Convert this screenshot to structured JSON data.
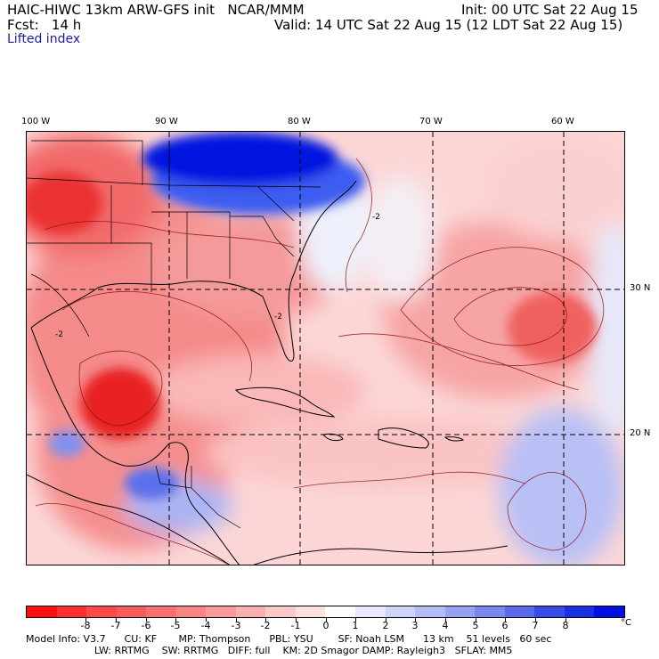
{
  "header": {
    "model_line": "HAIC-HIWC 13km ARW-GFS init   NCAR/MMM",
    "init": "Init: 00 UTC Sat 22 Aug 15",
    "fcst_line": "Fcst:   14 h",
    "valid": "Valid: 14 UTC Sat 22 Aug 15 (12 LDT Sat 22 Aug 15)",
    "field": "Lifted index"
  },
  "map": {
    "longitude_labels": [
      "100 W",
      "90 W",
      "80 W",
      "70 W",
      "60 W"
    ],
    "latitude_labels": [
      "30 N",
      "20 N"
    ],
    "contour_labels": [
      "-2",
      "-2",
      "-2"
    ],
    "colors": {
      "deep_blue": "#0018e0",
      "blue": "#3c5cf0",
      "light_blue": "#aab4f4",
      "pale": "#e6e8fa",
      "light_red": "#f8b8b8",
      "red": "#f06060",
      "deep_red": "#e82020"
    }
  },
  "colorbar": {
    "labels": [
      "-8",
      "-7",
      "-6",
      "-5",
      "-4",
      "-3",
      "-2",
      "-1",
      "0",
      "1",
      "2",
      "3",
      "4",
      "5",
      "6",
      "7",
      "8"
    ],
    "unit": "°C",
    "colors": [
      "#ff1010",
      "#ff2e2e",
      "#ff4848",
      "#f85c5c",
      "#f87070",
      "#f88484",
      "#f89a9a",
      "#fab0b0",
      "#fcc8c8",
      "#fde0e0",
      "#ffffff",
      "#e8e8ff",
      "#d0d4fa",
      "#b4bcf6",
      "#98a2f2",
      "#7a88ee",
      "#5a6aea",
      "#3a4ce6",
      "#1a30e4",
      "#0010e0"
    ]
  },
  "model_info": {
    "line1": "Model Info: V3.7      CU: KF       MP: Thompson      PBL: YSU        SF: Noah LSM      13 km    51 levels   60 sec",
    "line2": "                      LW: RRTMG    SW: RRTMG   DIFF: full    KM: 2D Smagor DAMP: Rayleigh3   SFLAY: MM5"
  }
}
